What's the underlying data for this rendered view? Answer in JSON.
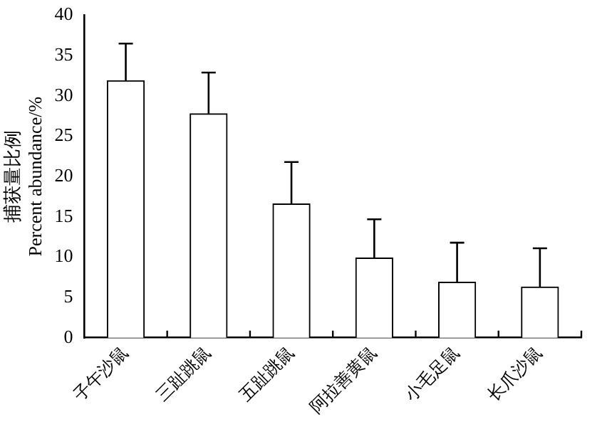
{
  "chart_data": {
    "type": "bar",
    "ylabel": "捕获量比例\nPercent abundance/%",
    "categories": [
      "子午沙鼠",
      "三趾跳鼠",
      "五趾跳鼠",
      "阿拉善黄鼠",
      "小毛足鼠",
      "长爪沙鼠"
    ],
    "values": [
      31.9,
      27.8,
      16.6,
      9.9,
      6.9,
      6.3
    ],
    "errors": [
      [
        31.9,
        36.5
      ],
      [
        27.8,
        32.9
      ],
      [
        16.6,
        21.8
      ],
      [
        9.9,
        14.7
      ],
      [
        6.9,
        11.8
      ],
      [
        6.3,
        11.1
      ]
    ],
    "color": "#ffffff",
    "ylim": [
      0,
      40
    ],
    "yticks": [
      0,
      5,
      10,
      15,
      20,
      25,
      30,
      35,
      40
    ],
    "grid": false,
    "legend": false
  }
}
